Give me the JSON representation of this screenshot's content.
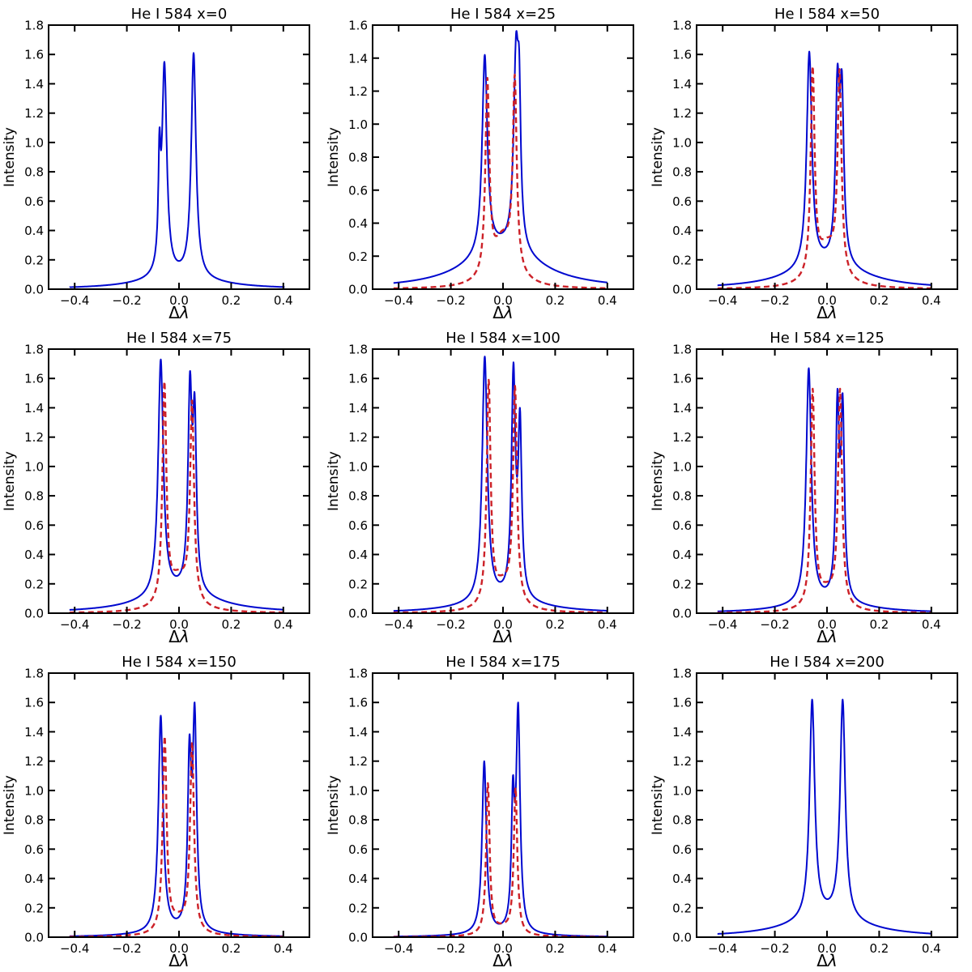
{
  "figure": {
    "background": "#ffffff",
    "axis_color": "#000000",
    "tick_label_fontsize": 15,
    "title_fontsize": 18
  },
  "chart_data": {
    "type": "line",
    "subplot_grid": [
      3,
      3
    ],
    "xlabel": "Δλ",
    "ylabel": "Intensity",
    "xlim": [
      -0.5,
      0.5
    ],
    "x_ticks": [
      -0.4,
      -0.2,
      0.0,
      0.2,
      0.4
    ],
    "y_tick_step": 0.2,
    "grid_lines": "off",
    "legend": "none",
    "series_styles": {
      "solid-blue": {
        "color": "#0008cf",
        "style": "solid",
        "width": 2
      },
      "dashed-red": {
        "color": "#cc2128",
        "style": "dashed",
        "width": 2.4,
        "dash": "7,4.5"
      }
    },
    "panels": [
      {
        "title": "He I 584 x=0",
        "ylim": [
          0,
          1.8
        ],
        "series": [
          {
            "name": "solid-blue",
            "color": "#0008cf",
            "style": "solid",
            "peaks": [
              {
                "x": -0.075,
                "y": 1.1,
                "g": 0.005
              },
              {
                "x": -0.056,
                "y": 1.55,
                "g": 0.011
              },
              {
                "x": 0.056,
                "y": 1.61,
                "g": 0.011
              }
            ],
            "wing": {
              "y": 0.08,
              "g": 0.17
            },
            "valley": {
              "x": 0.0,
              "y": 0.2
            },
            "x_range": [
              -0.42,
              0.405
            ]
          }
        ]
      },
      {
        "title": "He I 584 x=25",
        "ylim": [
          0,
          1.6
        ],
        "series": [
          {
            "name": "solid-blue",
            "color": "#0008cf",
            "style": "solid",
            "peaks": [
              {
                "x": -0.07,
                "y": 1.42,
                "g": 0.012
              },
              {
                "x": 0.05,
                "y": 1.55,
                "g": 0.011
              },
              {
                "x": 0.062,
                "y": 1.45,
                "g": 0.007
              }
            ],
            "wing": {
              "y": 0.25,
              "g": 0.17
            },
            "valley": {
              "x": -0.005,
              "y": 0.38
            },
            "x_range": [
              -0.42,
              0.4
            ]
          },
          {
            "name": "dashed-red",
            "color": "#cc2128",
            "style": "dashed",
            "peaks": [
              {
                "x": -0.06,
                "y": 1.28,
                "g": 0.009
              },
              {
                "x": 0.045,
                "y": 1.3,
                "g": 0.009
              }
            ],
            "wing": {
              "y": 0.29,
              "g": 0.05
            },
            "valley": {
              "x": 0.0,
              "y": 0.38
            },
            "x_range": [
              -0.42,
              0.4
            ]
          }
        ]
      },
      {
        "title": "He I 584 x=50",
        "ylim": [
          0,
          1.8
        ],
        "series": [
          {
            "name": "solid-blue",
            "color": "#0008cf",
            "style": "solid",
            "peaks": [
              {
                "x": -0.068,
                "y": 1.62,
                "g": 0.012
              },
              {
                "x": 0.04,
                "y": 1.53,
                "g": 0.009
              },
              {
                "x": 0.057,
                "y": 1.49,
                "g": 0.009
              }
            ],
            "wing": {
              "y": 0.17,
              "g": 0.17
            },
            "valley": {
              "x": 0.0,
              "y": 0.33
            },
            "x_range": [
              -0.42,
              0.4
            ]
          },
          {
            "name": "dashed-red",
            "color": "#cc2128",
            "style": "dashed",
            "peaks": [
              {
                "x": -0.055,
                "y": 1.52,
                "g": 0.009
              },
              {
                "x": 0.048,
                "y": 1.5,
                "g": 0.009
              }
            ],
            "wing": {
              "y": 0.27,
              "g": 0.05
            },
            "valley": {
              "x": 0.0,
              "y": 0.35
            },
            "x_range": [
              -0.42,
              0.4
            ]
          }
        ]
      },
      {
        "title": "He I 584 x=75",
        "ylim": [
          0,
          1.8
        ],
        "series": [
          {
            "name": "solid-blue",
            "color": "#0008cf",
            "style": "solid",
            "peaks": [
              {
                "x": -0.07,
                "y": 1.73,
                "g": 0.012
              },
              {
                "x": 0.042,
                "y": 1.65,
                "g": 0.009
              },
              {
                "x": 0.06,
                "y": 1.5,
                "g": 0.008
              }
            ],
            "wing": {
              "y": 0.14,
              "g": 0.17
            },
            "valley": {
              "x": -0.005,
              "y": 0.29
            },
            "x_range": [
              -0.42,
              0.4
            ]
          },
          {
            "name": "dashed-red",
            "color": "#cc2128",
            "style": "dashed",
            "peaks": [
              {
                "x": -0.056,
                "y": 1.58,
                "g": 0.009
              },
              {
                "x": 0.05,
                "y": 1.45,
                "g": 0.009
              }
            ],
            "wing": {
              "y": 0.22,
              "g": 0.05
            },
            "valley": {
              "x": 0.0,
              "y": 0.3
            },
            "x_range": [
              -0.42,
              0.4
            ]
          }
        ]
      },
      {
        "title": "He I 584 x=100",
        "ylim": [
          0,
          1.8
        ],
        "series": [
          {
            "name": "solid-blue",
            "color": "#0008cf",
            "style": "solid",
            "peaks": [
              {
                "x": -0.07,
                "y": 1.75,
                "g": 0.012
              },
              {
                "x": 0.04,
                "y": 1.71,
                "g": 0.009
              },
              {
                "x": 0.065,
                "y": 1.4,
                "g": 0.008
              }
            ],
            "wing": {
              "y": 0.09,
              "g": 0.17
            },
            "valley": {
              "x": -0.005,
              "y": 0.24
            },
            "x_range": [
              -0.42,
              0.4
            ]
          },
          {
            "name": "dashed-red",
            "color": "#cc2128",
            "style": "dashed",
            "peaks": [
              {
                "x": -0.055,
                "y": 1.59,
                "g": 0.009
              },
              {
                "x": 0.046,
                "y": 1.55,
                "g": 0.009
              }
            ],
            "wing": {
              "y": 0.17,
              "g": 0.05
            },
            "valley": {
              "x": 0.0,
              "y": 0.25
            },
            "x_range": [
              -0.42,
              0.4
            ]
          }
        ]
      },
      {
        "title": "He I 584 x=125",
        "ylim": [
          0,
          1.8
        ],
        "series": [
          {
            "name": "solid-blue",
            "color": "#0008cf",
            "style": "solid",
            "peaks": [
              {
                "x": -0.07,
                "y": 1.67,
                "g": 0.012
              },
              {
                "x": 0.04,
                "y": 1.53,
                "g": 0.008
              },
              {
                "x": 0.06,
                "y": 1.5,
                "g": 0.008
              }
            ],
            "wing": {
              "y": 0.07,
              "g": 0.17
            },
            "valley": {
              "x": -0.005,
              "y": 0.2
            },
            "x_range": [
              -0.42,
              0.4
            ]
          },
          {
            "name": "dashed-red",
            "color": "#cc2128",
            "style": "dashed",
            "peaks": [
              {
                "x": -0.055,
                "y": 1.53,
                "g": 0.009
              },
              {
                "x": 0.05,
                "y": 1.53,
                "g": 0.009
              }
            ],
            "wing": {
              "y": 0.13,
              "g": 0.05
            },
            "valley": {
              "x": 0.0,
              "y": 0.21
            },
            "x_range": [
              -0.42,
              0.4
            ]
          }
        ]
      },
      {
        "title": "He I 584 x=150",
        "ylim": [
          0,
          1.8
        ],
        "series": [
          {
            "name": "solid-blue",
            "color": "#0008cf",
            "style": "solid",
            "peaks": [
              {
                "x": -0.07,
                "y": 1.51,
                "g": 0.011
              },
              {
                "x": 0.04,
                "y": 1.38,
                "g": 0.008
              },
              {
                "x": 0.06,
                "y": 1.6,
                "g": 0.009
              }
            ],
            "wing": {
              "y": 0.03,
              "g": 0.17
            },
            "valley": {
              "x": -0.005,
              "y": 0.15
            },
            "x_range": [
              -0.42,
              0.4
            ]
          },
          {
            "name": "dashed-red",
            "color": "#cc2128",
            "style": "dashed",
            "peaks": [
              {
                "x": -0.055,
                "y": 1.37,
                "g": 0.009
              },
              {
                "x": 0.05,
                "y": 1.33,
                "g": 0.009
              }
            ],
            "wing": {
              "y": 0.1,
              "g": 0.05
            },
            "valley": {
              "x": 0.0,
              "y": 0.17
            },
            "x_range": [
              -0.42,
              0.4
            ]
          }
        ]
      },
      {
        "title": "He I 584 x=175",
        "ylim": [
          0,
          1.8
        ],
        "series": [
          {
            "name": "solid-blue",
            "color": "#0008cf",
            "style": "solid",
            "peaks": [
              {
                "x": -0.072,
                "y": 1.2,
                "g": 0.01
              },
              {
                "x": 0.038,
                "y": 1.1,
                "g": 0.007
              },
              {
                "x": 0.058,
                "y": 1.6,
                "g": 0.009
              }
            ],
            "wing": {
              "y": 0.02,
              "g": 0.17
            },
            "valley": {
              "x": -0.005,
              "y": 0.11
            },
            "x_range": [
              -0.42,
              0.4
            ]
          },
          {
            "name": "dashed-red",
            "color": "#cc2128",
            "style": "dashed",
            "peaks": [
              {
                "x": -0.058,
                "y": 1.05,
                "g": 0.008
              },
              {
                "x": 0.048,
                "y": 1.02,
                "g": 0.008
              }
            ],
            "wing": {
              "y": 0.05,
              "g": 0.05
            },
            "valley": {
              "x": 0.0,
              "y": 0.12
            },
            "x_range": [
              -0.42,
              0.4
            ]
          }
        ]
      },
      {
        "title": "He I 584 x=200",
        "ylim": [
          0,
          1.8
        ],
        "series": [
          {
            "name": "solid-blue",
            "color": "#0008cf",
            "style": "solid",
            "peaks": [
              {
                "x": -0.057,
                "y": 1.62,
                "g": 0.012
              },
              {
                "x": 0.06,
                "y": 1.62,
                "g": 0.012
              }
            ],
            "wing": {
              "y": 0.14,
              "g": 0.17
            },
            "valley": {
              "x": 0.0,
              "y": 0.27
            },
            "x_range": [
              -0.42,
              0.4
            ]
          }
        ]
      }
    ]
  }
}
